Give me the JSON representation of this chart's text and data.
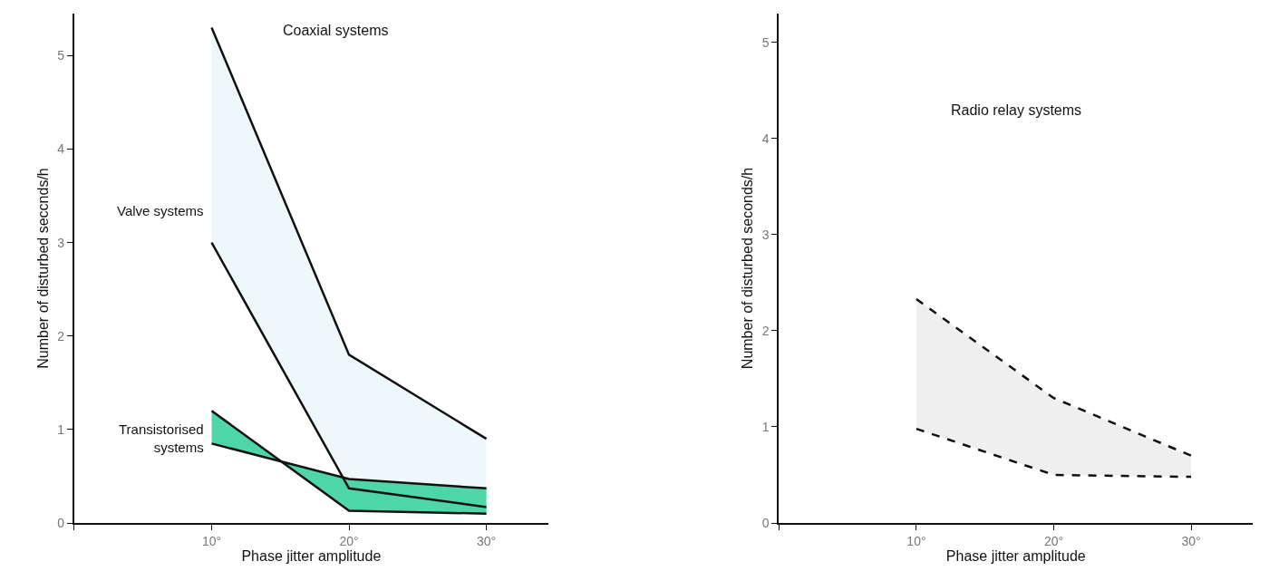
{
  "chart_data": [
    {
      "type": "line",
      "title": "Coaxial systems",
      "xlabel": "Phase jitter amplitude",
      "ylabel": "Number of disturbed seccnds/h",
      "x": [
        10,
        20,
        30
      ],
      "xlim": [
        0,
        34.5
      ],
      "xticks": [
        {
          "value": 0,
          "label": null
        },
        {
          "value": 10,
          "label": "10°"
        },
        {
          "value": 20,
          "label": "20°"
        },
        {
          "value": 30,
          "label": "30°"
        }
      ],
      "ylim": [
        0,
        5.45
      ],
      "yticks": [
        0,
        1,
        2,
        3,
        4,
        5
      ],
      "colors": [
        "#eef8fa",
        "#4fd6a8"
      ],
      "series": [
        {
          "name": "Valve systems",
          "color": "#111111",
          "values": [
            3.0,
            0.37,
            0.17
          ],
          "lower": [
            3.0,
            0.37,
            0.17
          ],
          "upper": [
            5.3,
            1.8,
            0.9
          ]
        },
        {
          "color": "#111111",
          "values": [
            5.3,
            1.8,
            0.9
          ]
        },
        {
          "name": "Transistorised\nsystems",
          "color": "#111111",
          "values": [
            0.85,
            0.47,
            0.37
          ],
          "lower": [
            0.85,
            0.47,
            0.37
          ],
          "upper": [
            1.2,
            0.13,
            0.1
          ]
        },
        {
          "color": "#111111",
          "values": [
            1.2,
            0.13,
            0.1
          ]
        }
      ]
    },
    {
      "type": "line",
      "title": "Radio relay systems",
      "xlabel": "Phase jitter amplitude",
      "ylabel": "Number of disturbed seconds/h",
      "x": [
        10,
        20,
        30
      ],
      "xlim": [
        0,
        34.5
      ],
      "xticks": [
        {
          "value": 0,
          "label": null
        },
        {
          "value": 10,
          "label": "10°"
        },
        {
          "value": 20,
          "label": "20°"
        },
        {
          "value": 30,
          "label": "30°"
        }
      ],
      "ylim": [
        0,
        5.3
      ],
      "yticks": [
        0,
        1,
        2,
        3,
        4,
        5
      ],
      "line_style": "dashed",
      "colors": [
        "#efefef"
      ],
      "series": [
        {
          "color": "#111111",
          "values": [
            2.33,
            1.3,
            0.7
          ],
          "lower": [
            0.98,
            0.5,
            0.48
          ],
          "upper": [
            2.33,
            1.3,
            0.7
          ]
        },
        {
          "color": "#111111",
          "values": [
            0.98,
            0.5,
            0.48
          ]
        }
      ]
    }
  ]
}
